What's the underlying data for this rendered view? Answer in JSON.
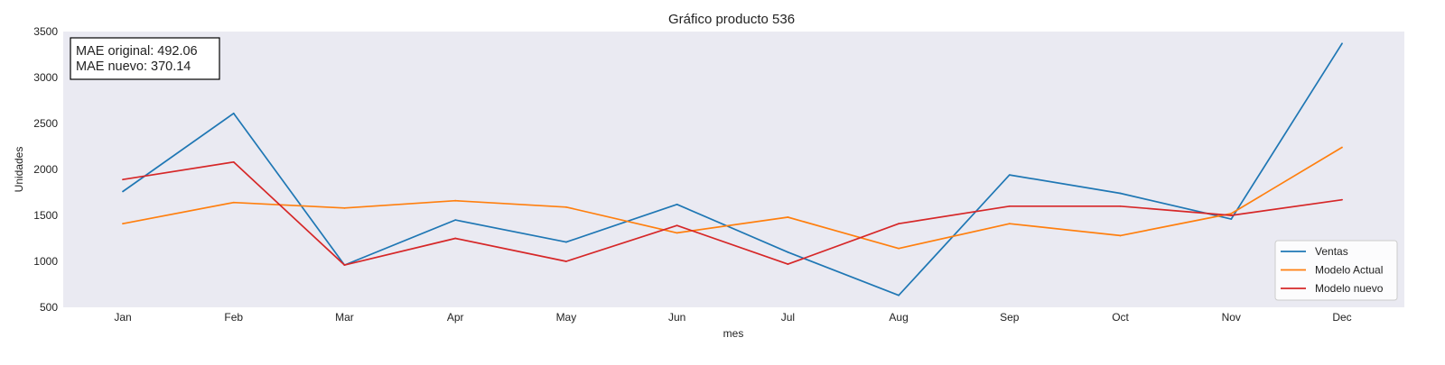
{
  "chart_data": {
    "type": "line",
    "title": "Gráfico producto 536",
    "xlabel": "mes",
    "ylabel": "Unidades",
    "categories": [
      "Jan",
      "Feb",
      "Mar",
      "Apr",
      "May",
      "Jun",
      "Jul",
      "Aug",
      "Sep",
      "Oct",
      "Nov",
      "Dec"
    ],
    "ylim": [
      500,
      3500
    ],
    "yticks": [
      500,
      1000,
      1500,
      2000,
      2500,
      3000,
      3500
    ],
    "grid": false,
    "legend_position": "bottom-right",
    "background_color": "#eaeaf2",
    "series": [
      {
        "name": "Ventas",
        "color": "#1f77b4",
        "values": [
          1760,
          2610,
          960,
          1450,
          1210,
          1620,
          1100,
          630,
          1940,
          1740,
          1460,
          3370
        ]
      },
      {
        "name": "Modelo Actual",
        "color": "#ff7f0e",
        "values": [
          1410,
          1640,
          1580,
          1660,
          1590,
          1310,
          1480,
          1140,
          1410,
          1280,
          1520,
          2240
        ]
      },
      {
        "name": "Modelo nuevo",
        "color": "#d62728",
        "values": [
          1890,
          2080,
          960,
          1250,
          1000,
          1390,
          970,
          1410,
          1600,
          1600,
          1500,
          1670
        ]
      }
    ],
    "annotation": {
      "line1": "MAE original: 492.06",
      "line2": "MAE nuevo: 370.14"
    }
  }
}
